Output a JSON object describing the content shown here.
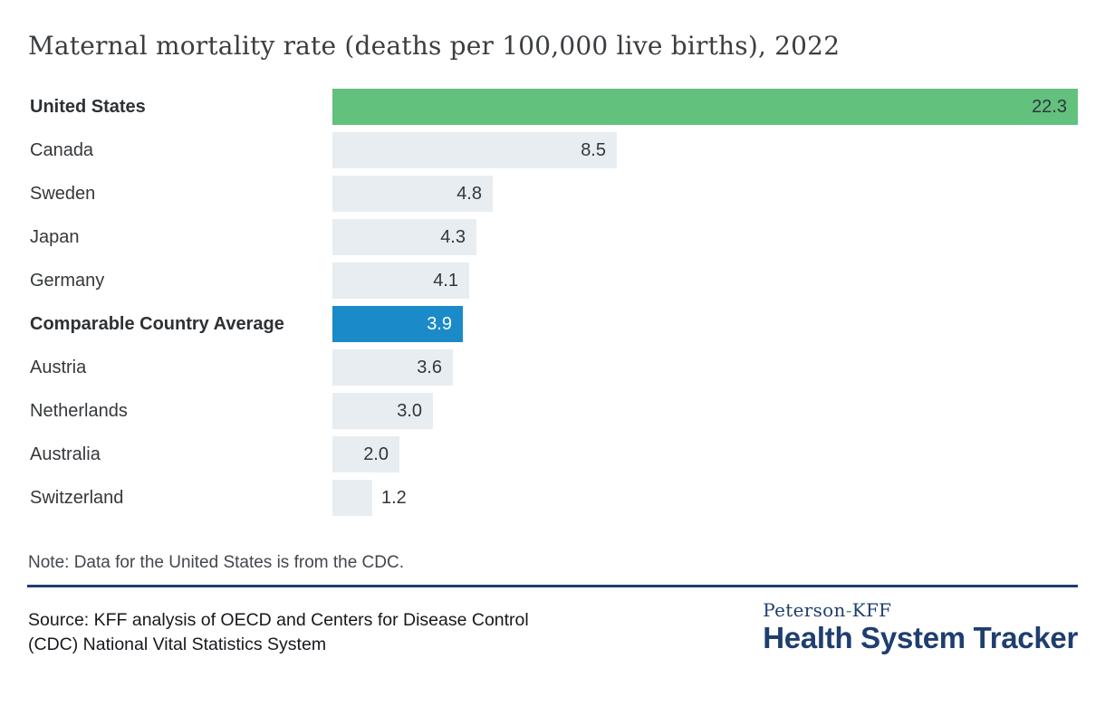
{
  "title": "Maternal mortality rate (deaths per 100,000 live births), 2022",
  "chart_data": {
    "type": "bar",
    "orientation": "horizontal",
    "title": "Maternal mortality rate (deaths per 100,000 live births), 2022",
    "xlabel": "deaths per 100,000 live births",
    "ylabel": "",
    "xlim": [
      0,
      22.3
    ],
    "grid": false,
    "legend": "none",
    "categories": [
      "United States",
      "Canada",
      "Sweden",
      "Japan",
      "Germany",
      "Comparable Country Average",
      "Austria",
      "Netherlands",
      "Australia",
      "Switzerland"
    ],
    "values": [
      22.3,
      8.5,
      4.8,
      4.3,
      4.1,
      3.9,
      3.6,
      3.0,
      2.0,
      1.2
    ],
    "rows": [
      {
        "label": "United States",
        "value": 22.3,
        "display": "22.3",
        "emphasis": true,
        "variant": "highlight_green"
      },
      {
        "label": "Canada",
        "value": 8.5,
        "display": "8.5",
        "emphasis": false,
        "variant": "default"
      },
      {
        "label": "Sweden",
        "value": 4.8,
        "display": "4.8",
        "emphasis": false,
        "variant": "default"
      },
      {
        "label": "Japan",
        "value": 4.3,
        "display": "4.3",
        "emphasis": false,
        "variant": "default"
      },
      {
        "label": "Germany",
        "value": 4.1,
        "display": "4.1",
        "emphasis": false,
        "variant": "default"
      },
      {
        "label": "Comparable Country Average",
        "value": 3.9,
        "display": "3.9",
        "emphasis": true,
        "variant": "highlight_blue"
      },
      {
        "label": "Austria",
        "value": 3.6,
        "display": "3.6",
        "emphasis": false,
        "variant": "default"
      },
      {
        "label": "Netherlands",
        "value": 3.0,
        "display": "3.0",
        "emphasis": false,
        "variant": "default"
      },
      {
        "label": "Australia",
        "value": 2.0,
        "display": "2.0",
        "emphasis": false,
        "variant": "default"
      },
      {
        "label": "Switzerland",
        "value": 1.2,
        "display": "1.2",
        "emphasis": false,
        "variant": "default"
      }
    ]
  },
  "note": "Note: Data for the United States is from the CDC.",
  "source": {
    "line1": "Source: KFF analysis of OECD and Centers for Disease Control",
    "line2": "(CDC) National Vital Statistics System"
  },
  "logo": {
    "brand_left": "Peterson",
    "hyphen": "-",
    "brand_right": "KFF",
    "name": "Health System Tracker"
  },
  "colors": {
    "highlight_green": "#61c17d",
    "highlight_blue": "#1b8ac8",
    "default": "#e8edf1",
    "navy": "#203d6f",
    "logo_hyphen_green": "#3f9e63",
    "text_dark": "#33363a",
    "value_on_blue": "#ffffff"
  }
}
